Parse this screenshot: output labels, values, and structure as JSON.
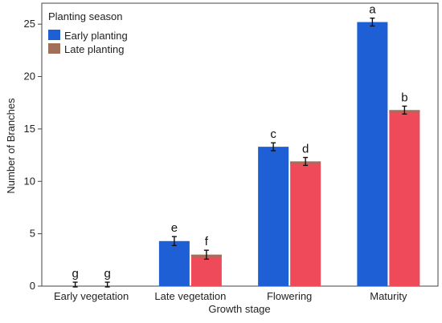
{
  "chart_data": {
    "type": "bar",
    "xlabel": "Growth stage",
    "ylabel": "Number of Branches",
    "ylim": [
      0,
      27
    ],
    "yticks": [
      0,
      5,
      10,
      15,
      20,
      25
    ],
    "grid": false,
    "legend": {
      "title": "Planting season",
      "position": "top-left"
    },
    "categories": [
      "Early vegetation",
      "Late vegetation",
      "Flowering",
      "Maturity"
    ],
    "series": [
      {
        "name": "Early planting",
        "color": "#1f5fd6",
        "values": [
          0,
          4.3,
          13.3,
          25.2
        ],
        "errors": [
          0.3,
          0.35,
          0.3,
          0.3
        ],
        "labels": [
          "g",
          "e",
          "c",
          "a"
        ]
      },
      {
        "name": "Late planting",
        "color": "#ef4a5a",
        "cap_color": "#a0705a",
        "values": [
          0,
          3.0,
          11.9,
          16.8
        ],
        "errors": [
          0.3,
          0.35,
          0.3,
          0.3
        ],
        "labels": [
          "g",
          "f",
          "d",
          "b"
        ]
      }
    ]
  }
}
